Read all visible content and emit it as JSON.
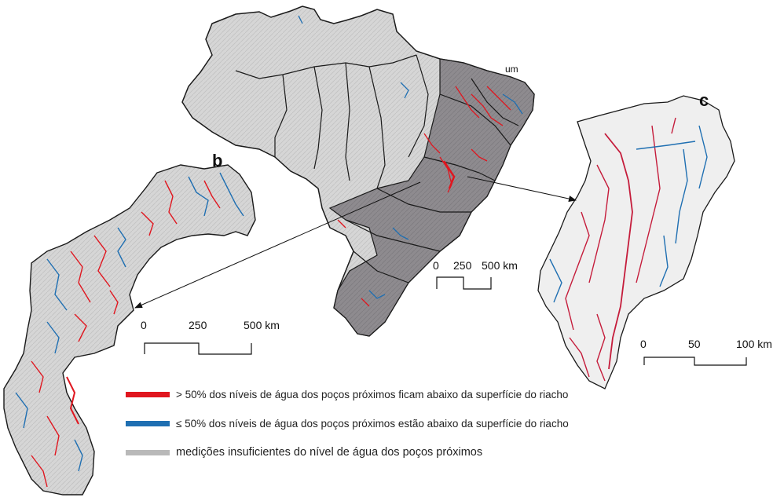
{
  "panels": {
    "a": {
      "letter": "um"
    },
    "b": {
      "letter": "b"
    },
    "c": {
      "letter": "c"
    }
  },
  "scale_bars": {
    "a": {
      "ticks": [
        "0",
        "250",
        "500 km"
      ]
    },
    "b": {
      "ticks": [
        "0",
        "250",
        "500 km"
      ]
    },
    "c": {
      "ticks": [
        "0",
        "50",
        "100 km"
      ]
    }
  },
  "legend": {
    "items": [
      {
        "color": "#e0161f",
        "label": "> 50% dos níveis de água dos poços próximos ficam abaixo da superfície do riacho"
      },
      {
        "color": "#1f6fb2",
        "label": "≤ 50% dos níveis de água dos poços próximos estão abaixo da superfície do riacho"
      },
      {
        "color": "#b9b9b9",
        "label": "medições insuficientes do nível de água dos poços próximos"
      }
    ]
  },
  "colors": {
    "land": "#d9d9d9",
    "shaded_region": "#8c8a8d",
    "border": "#1a1a1a"
  }
}
